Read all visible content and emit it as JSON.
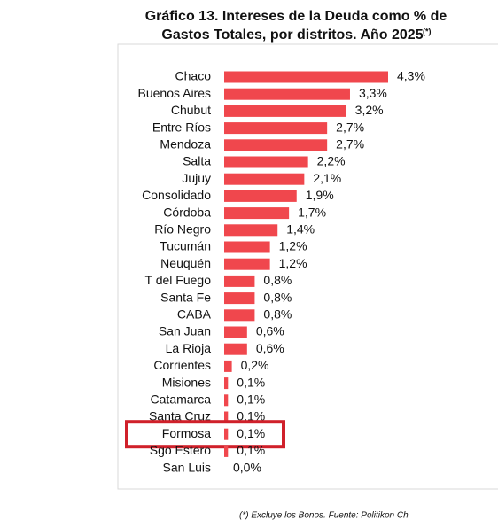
{
  "chart_data": {
    "type": "bar",
    "orientation": "horizontal",
    "title_lines": [
      "Gráfico 13. Intereses de la Deuda como % de",
      "Gastos Totales, por distritos. Año 2025"
    ],
    "title_note": "(*)",
    "categories": [
      "Chaco",
      "Buenos Aires",
      "Chubut",
      "Entre Ríos",
      "Mendoza",
      "Salta",
      "Jujuy",
      "Consolidado",
      "Córdoba",
      "Río Negro",
      "Tucumán",
      "Neuquén",
      "T del Fuego",
      "Santa Fe",
      "CABA",
      "San Juan",
      "La Rioja",
      "Corrientes",
      "Misiones",
      "Catamarca",
      "Santa Cruz",
      "Formosa",
      "Sgo Estero",
      "San Luis"
    ],
    "values": [
      4.3,
      3.3,
      3.2,
      2.7,
      2.7,
      2.2,
      2.1,
      1.9,
      1.7,
      1.4,
      1.2,
      1.2,
      0.8,
      0.8,
      0.8,
      0.6,
      0.6,
      0.2,
      0.1,
      0.1,
      0.1,
      0.1,
      0.1,
      0.0
    ],
    "value_labels": [
      "4,3%",
      "3,3%",
      "3,2%",
      "2,7%",
      "2,7%",
      "2,2%",
      "2,1%",
      "1,9%",
      "1,7%",
      "1,4%",
      "1,2%",
      "1,2%",
      "0,8%",
      "0,8%",
      "0,8%",
      "0,6%",
      "0,6%",
      "0,2%",
      "0,1%",
      "0,1%",
      "0,1%",
      "0,1%",
      "0,1%",
      "0,0%"
    ],
    "color": "#f0474d",
    "highlight": "Formosa",
    "highlight_color": "#d0202a",
    "footnote": "(*) Excluye los Bonos. Fuente: Politikon Ch"
  }
}
